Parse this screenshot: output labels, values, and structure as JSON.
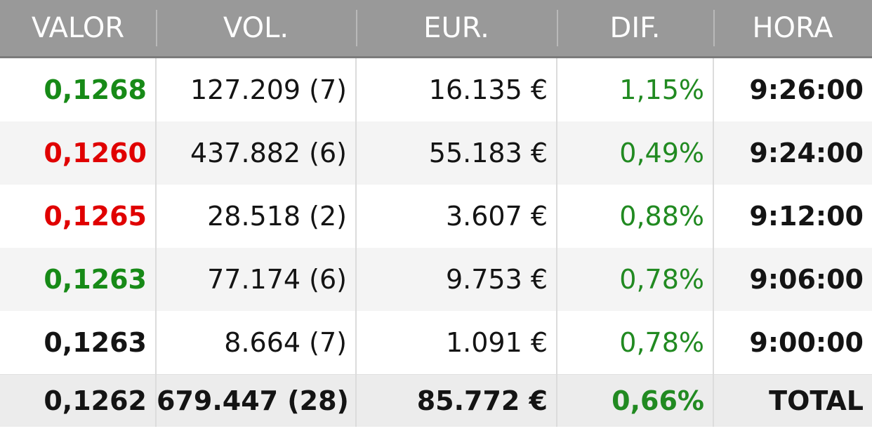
{
  "header": {
    "columns": [
      "VALOR",
      "VOL.",
      "EUR.",
      "DIF.",
      "HORA"
    ]
  },
  "colors": {
    "header_bg": "#999999",
    "up": "#178a17",
    "down": "#e00000",
    "neutral": "#141414"
  },
  "rows": [
    {
      "valor": "0,1268",
      "trend": "up",
      "vol": "127.209 (7)",
      "eur": "16.135 €",
      "dif": "1,15%",
      "hora": "9:26:00"
    },
    {
      "valor": "0,1260",
      "trend": "down",
      "vol": "437.882 (6)",
      "eur": "55.183 €",
      "dif": "0,49%",
      "hora": "9:24:00"
    },
    {
      "valor": "0,1265",
      "trend": "down",
      "vol": "28.518 (2)",
      "eur": "3.607 €",
      "dif": "0,88%",
      "hora": "9:12:00"
    },
    {
      "valor": "0,1263",
      "trend": "up",
      "vol": "77.174 (6)",
      "eur": "9.753 €",
      "dif": "0,78%",
      "hora": "9:06:00"
    },
    {
      "valor": "0,1263",
      "trend": "flat",
      "vol": "8.664 (7)",
      "eur": "1.091 €",
      "dif": "0,78%",
      "hora": "9:00:00"
    }
  ],
  "total": {
    "valor": "0,1262",
    "vol": "679.447 (28)",
    "eur": "85.772 €",
    "dif": "0,66%",
    "label": "TOTAL"
  }
}
